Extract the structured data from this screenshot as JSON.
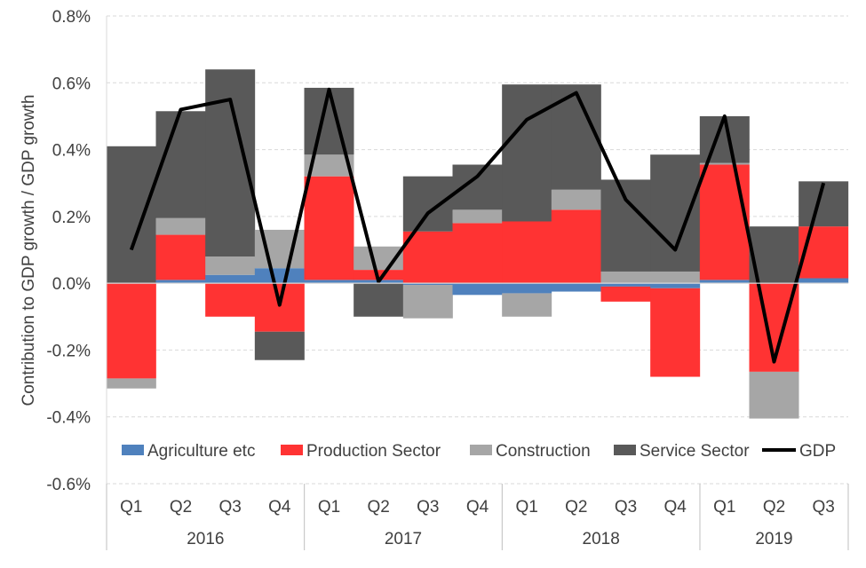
{
  "chart_data": {
    "type": "bar",
    "stacked": true,
    "ylabel": "Contribution to GDP growth / GDP growth",
    "ylim": [
      -0.6,
      0.8
    ],
    "ytick_step": 0.2,
    "ytick_labels": [
      "-0.6%",
      "-0.4%",
      "-0.2%",
      "0.0%",
      "0.2%",
      "0.4%",
      "0.6%",
      "0.8%"
    ],
    "grid": "horizontal dashed",
    "legend_position": "bottom-inside",
    "categories": [
      "Q1",
      "Q2",
      "Q3",
      "Q4",
      "Q1",
      "Q2",
      "Q3",
      "Q4",
      "Q1",
      "Q2",
      "Q3",
      "Q4",
      "Q1",
      "Q2",
      "Q3"
    ],
    "year_groups": [
      {
        "label": "2016",
        "count": 4
      },
      {
        "label": "2017",
        "count": 4
      },
      {
        "label": "2018",
        "count": 4
      },
      {
        "label": "2019",
        "count": 3
      }
    ],
    "series": [
      {
        "name": "Agriculture etc",
        "kind": "bar",
        "color": "#4f81bd",
        "values": [
          0.0,
          0.01,
          0.025,
          0.045,
          0.01,
          0.01,
          -0.005,
          -0.035,
          -0.03,
          -0.025,
          -0.01,
          -0.015,
          0.01,
          0.0,
          0.015
        ]
      },
      {
        "name": "Production Sector",
        "kind": "bar",
        "color": "#ff3333",
        "values": [
          -0.285,
          0.135,
          -0.1,
          -0.145,
          0.31,
          0.03,
          0.155,
          0.18,
          0.185,
          0.22,
          -0.045,
          -0.265,
          0.345,
          -0.265,
          0.155
        ]
      },
      {
        "name": "Construction",
        "kind": "bar",
        "color": "#a6a6a6",
        "values": [
          -0.03,
          0.05,
          0.055,
          0.115,
          0.065,
          0.07,
          -0.1,
          0.04,
          -0.07,
          0.06,
          0.035,
          0.035,
          0.005,
          -0.14,
          0.0
        ]
      },
      {
        "name": "Service Sector",
        "kind": "bar",
        "color": "#595959",
        "values": [
          0.41,
          0.32,
          0.56,
          -0.085,
          0.2,
          -0.1,
          0.165,
          0.135,
          0.41,
          0.315,
          0.275,
          0.35,
          0.14,
          0.17,
          0.135
        ]
      },
      {
        "name": "GDP",
        "kind": "line",
        "color": "#000000",
        "values": [
          0.1,
          0.52,
          0.55,
          -0.065,
          0.58,
          0.005,
          0.21,
          0.32,
          0.49,
          0.57,
          0.25,
          0.1,
          0.5,
          -0.235,
          0.3
        ]
      }
    ]
  }
}
